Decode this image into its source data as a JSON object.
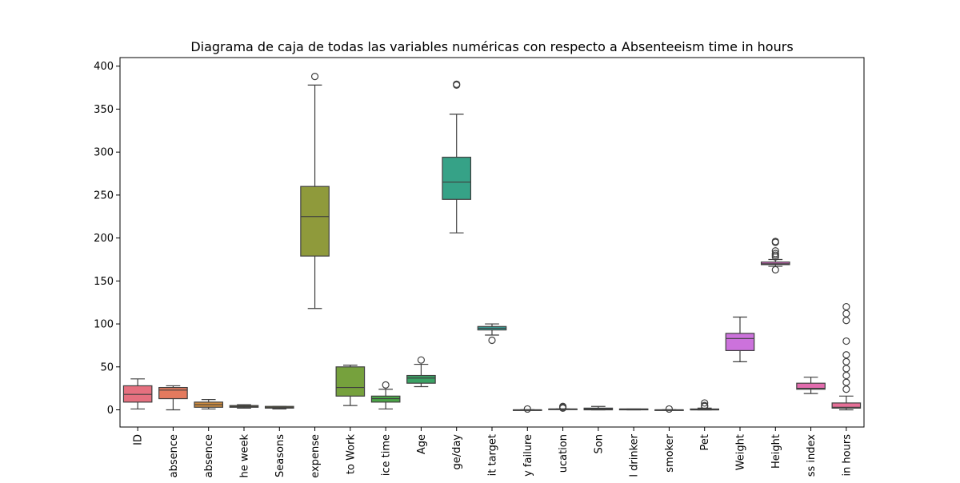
{
  "chart_data": {
    "type": "box",
    "title": "Diagrama de caja de todas las variables numéricas con respecto a Absenteeism time in hours",
    "xlabel": "",
    "ylabel": "",
    "ylim": [
      -20,
      410
    ],
    "yticks": [
      0,
      50,
      100,
      150,
      200,
      250,
      300,
      350,
      400
    ],
    "grid": false,
    "categories": [
      "ID",
      "absence",
      "absence",
      "he week",
      "Seasons",
      "expense",
      "to Work",
      "ice time",
      "Age",
      "ge/day",
      "it target",
      "y failure",
      "ucation",
      "Son",
      "l drinker",
      "smoker",
      "Pet",
      "Weight",
      "Height",
      "ss index",
      "in hours"
    ],
    "boxes": [
      {
        "name": "ID",
        "color": "#e5707f",
        "whisker_low": 1,
        "q1": 9,
        "median": 18,
        "q3": 28,
        "whisker_high": 36,
        "outliers": []
      },
      {
        "name": "absence",
        "color": "#e47a5e",
        "whisker_low": 0,
        "q1": 13,
        "median": 23,
        "q3": 26,
        "whisker_high": 28,
        "outliers": []
      },
      {
        "name": "absence",
        "color": "#cf8c3f",
        "whisker_low": 1,
        "q1": 3,
        "median": 6,
        "q3": 9,
        "whisker_high": 12,
        "outliers": []
      },
      {
        "name": "he week",
        "color": "#b59a38",
        "whisker_low": 2,
        "q1": 3,
        "median": 4,
        "q3": 5,
        "whisker_high": 6,
        "outliers": []
      },
      {
        "name": "Seasons",
        "color": "#a49f3a",
        "whisker_low": 1,
        "q1": 2,
        "median": 3,
        "q3": 4,
        "whisker_high": 4,
        "outliers": []
      },
      {
        "name": "expense",
        "color": "#8f9a3b",
        "whisker_low": 118,
        "q1": 179,
        "median": 225,
        "q3": 260,
        "whisker_high": 378,
        "outliers": [
          388
        ]
      },
      {
        "name": "to Work",
        "color": "#76a13d",
        "whisker_low": 5,
        "q1": 16,
        "median": 26,
        "q3": 50,
        "whisker_high": 52,
        "outliers": []
      },
      {
        "name": "ice time",
        "color": "#4ba548",
        "whisker_low": 1,
        "q1": 9,
        "median": 13,
        "q3": 16,
        "whisker_high": 24,
        "outliers": [
          29
        ]
      },
      {
        "name": "Age",
        "color": "#3aa264",
        "whisker_low": 27,
        "q1": 31,
        "median": 37,
        "q3": 40,
        "whisker_high": 53,
        "outliers": [
          58
        ]
      },
      {
        "name": "ge/day",
        "color": "#36a287",
        "whisker_low": 206,
        "q1": 245,
        "median": 265,
        "q3": 294,
        "whisker_high": 344,
        "outliers": [
          378,
          379
        ]
      },
      {
        "name": "it target",
        "color": "#38a39a",
        "whisker_low": 87,
        "q1": 93,
        "median": 95,
        "q3": 97,
        "whisker_high": 100,
        "outliers": [
          81
        ]
      },
      {
        "name": "y failure",
        "color": "#3aa3ac",
        "whisker_low": 0,
        "q1": 0,
        "median": 0,
        "q3": 0,
        "whisker_high": 0,
        "outliers": [
          1
        ]
      },
      {
        "name": "ucation",
        "color": "#3ca5c3",
        "whisker_low": 1,
        "q1": 1,
        "median": 1,
        "q3": 1,
        "whisker_high": 1,
        "outliers": [
          2,
          3,
          4
        ]
      },
      {
        "name": "Son",
        "color": "#3a9fd4",
        "whisker_low": 0,
        "q1": 0,
        "median": 1,
        "q3": 2,
        "whisker_high": 4,
        "outliers": []
      },
      {
        "name": "l drinker",
        "color": "#6a93de",
        "whisker_low": 0,
        "q1": 0,
        "median": 1,
        "q3": 1,
        "whisker_high": 1,
        "outliers": []
      },
      {
        "name": "smoker",
        "color": "#9288df",
        "whisker_low": 0,
        "q1": 0,
        "median": 0,
        "q3": 0,
        "whisker_high": 0,
        "outliers": [
          1
        ]
      },
      {
        "name": "Pet",
        "color": "#b27cdd",
        "whisker_low": 0,
        "q1": 0,
        "median": 0,
        "q3": 1,
        "whisker_high": 2,
        "outliers": [
          4,
          5,
          8
        ]
      },
      {
        "name": "Weight",
        "color": "#cc72dc",
        "whisker_low": 56,
        "q1": 69,
        "median": 83,
        "q3": 89,
        "whisker_high": 108,
        "outliers": []
      },
      {
        "name": "Height",
        "color": "#dc6bc8",
        "whisker_low": 167,
        "q1": 169,
        "median": 170,
        "q3": 172,
        "whisker_high": 175,
        "outliers": [
          163,
          178,
          180,
          182,
          185,
          195,
          196
        ]
      },
      {
        "name": "ss index",
        "color": "#e26cae",
        "whisker_low": 19,
        "q1": 24,
        "median": 25,
        "q3": 31,
        "whisker_high": 38,
        "outliers": []
      },
      {
        "name": "in hours",
        "color": "#e66f97",
        "whisker_low": 0,
        "q1": 2,
        "median": 3,
        "q3": 8,
        "whisker_high": 16,
        "outliers": [
          24,
          32,
          40,
          48,
          56,
          64,
          80,
          104,
          112,
          120
        ]
      }
    ]
  }
}
